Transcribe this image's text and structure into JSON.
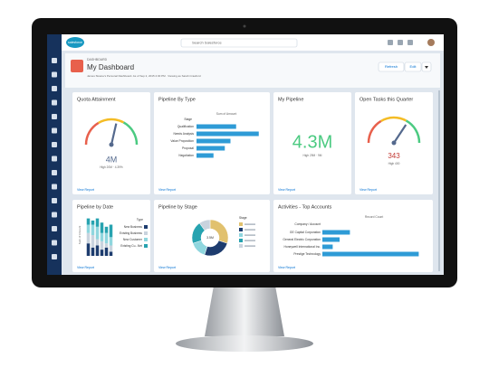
{
  "header": {
    "logo": "salesforce",
    "search_placeholder": "Search Salesforce",
    "breadcrumb": "DASHBOARD",
    "title": "My Dashboard",
    "subtitle": "James Sloane's Personal Dashboard. As of Sep 2, 2015 2:30 PM · Viewing as Sarah Crawford",
    "buttons": [
      "Refresh",
      "Edit"
    ]
  },
  "widgets": {
    "quota": {
      "title": "Quota Attainment",
      "value_label": "4M",
      "caption": "High 20M · 4.39%",
      "gauge_value": 4,
      "gauge_range": [
        0,
        7
      ],
      "link": "View Report"
    },
    "pipeline_type": {
      "title": "Pipeline By Type",
      "axis_label": "Sum of Amount",
      "column_label": "Stage",
      "categories": [
        "Qualification",
        "Needs Analysis",
        "Value Proposition",
        "Proposal",
        "Negotiation"
      ],
      "values": [
        700,
        1100,
        600,
        500,
        300
      ],
      "xlim": [
        0,
        1200
      ],
      "color": "#2e9bd6",
      "link": "View Report"
    },
    "my_pipeline": {
      "title": "My Pipeline",
      "value_label": "4.3M",
      "caption": "High 29M · 9M",
      "link": "View Report"
    },
    "open_tasks": {
      "title": "Open Tasks this Quarter",
      "value_label": "343",
      "caption": "High 400",
      "gauge_value": 343,
      "gauge_range": [
        0,
        500
      ],
      "link": "View Report"
    },
    "pipeline_date": {
      "title": "Pipeline by Date",
      "axis_label": "Sum of Amount",
      "legend_title": "Type",
      "ylim": [
        0,
        100
      ],
      "series": [
        {
          "name": "New Business",
          "color": "#1d3c6e",
          "values": [
            30,
            20,
            25,
            15,
            20,
            10
          ]
        },
        {
          "name": "Existing Business",
          "color": "#c9d3de",
          "values": [
            25,
            30,
            15,
            20,
            10,
            15
          ]
        },
        {
          "name": "New Customer",
          "color": "#8fd6de",
          "values": [
            20,
            25,
            30,
            20,
            25,
            20
          ]
        },
        {
          "name": "Existing Cu...Net",
          "color": "#27a3b0",
          "values": [
            15,
            10,
            20,
            25,
            15,
            30
          ]
        }
      ],
      "link": "View Report"
    },
    "pipeline_stage": {
      "title": "Pipeline by Stage",
      "center_label": "3.5M",
      "legend_title": "Stage",
      "segments": [
        {
          "color": "#e1c16e",
          "value": 30
        },
        {
          "color": "#1d3c6e",
          "value": 25
        },
        {
          "color": "#8fd6de",
          "value": 15
        },
        {
          "color": "#27a3b0",
          "value": 20
        },
        {
          "color": "#c9d3de",
          "value": 10
        }
      ],
      "link": "View Report"
    },
    "activities": {
      "title": "Activities - Top Accounts",
      "column_label": "Company / Account",
      "axis_label": "Record Count",
      "categories": [
        "GE Capital Corporation",
        "General Electric Corporation",
        "Honeywell International Inc.",
        "Prestige Technology"
      ],
      "values": [
        8,
        5,
        3,
        28
      ],
      "xlim": [
        0,
        30
      ],
      "color": "#2e9bd6",
      "link": "View Report"
    }
  }
}
